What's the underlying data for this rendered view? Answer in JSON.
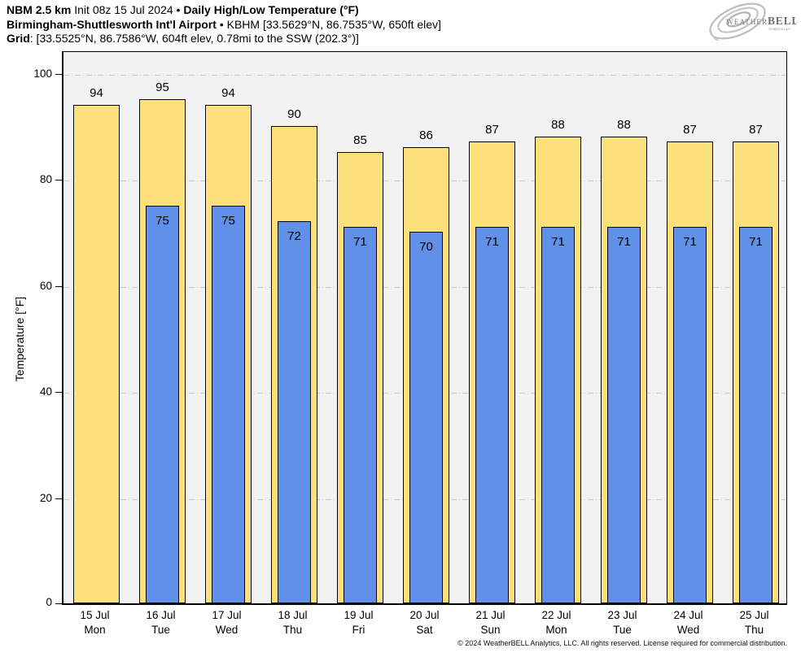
{
  "header": {
    "line1_model": "NBM 2.5 km",
    "line1_init": " Init 08z 15 Jul 2024 • ",
    "line1_title": "Daily High/Low Temperature (°F)",
    "line2_station": "Birmingham-Shuttlesworth Int'l Airport",
    "line2_info": " • KBHM [33.5629°N, 86.7535°W, 650ft elev]",
    "line3_label": "Grid",
    "line3_info": ": [33.5525°N, 86.7586°W, 604ft elev, 0.78mi to the SSW (202.3°)]"
  },
  "logo": {
    "brand_weather": "WEATHER",
    "brand_bell": "BELL",
    "subtext": "Analytics LLC"
  },
  "footer": {
    "copyright": "© 2024 WeatherBELL Analytics, LLC. All rights reserved. License required for commercial distribution."
  },
  "chart_data": {
    "type": "bar",
    "title": "NBM 2.5 km Daily High/Low Temperature (°F) — Birmingham-Shuttlesworth Int'l Airport (KBHM)",
    "ylabel": "Temperature [°F]",
    "ylim": [
      0,
      100
    ],
    "yticks": [
      0,
      20,
      40,
      60,
      80,
      100
    ],
    "grid": "horizontal dash-dot lines at 20,40,60,80,100",
    "legend": "none",
    "categories": [
      "15 Jul",
      "16 Jul",
      "17 Jul",
      "18 Jul",
      "19 Jul",
      "20 Jul",
      "21 Jul",
      "22 Jul",
      "23 Jul",
      "24 Jul",
      "25 Jul"
    ],
    "days": [
      "Mon",
      "Tue",
      "Wed",
      "Thu",
      "Fri",
      "Sat",
      "Sun",
      "Mon",
      "Tue",
      "Wed",
      "Thu"
    ],
    "series": [
      {
        "name": "High",
        "color": "#fce07b",
        "values": [
          94,
          95,
          94,
          90,
          85,
          86,
          87,
          88,
          88,
          87,
          87
        ]
      },
      {
        "name": "Low",
        "color": "#6090e8",
        "values": [
          null,
          75,
          75,
          72,
          71,
          70,
          71,
          71,
          71,
          71,
          71
        ]
      }
    ]
  },
  "colors": {
    "plot_bg": "#f2f2f2",
    "gridline": "#c9c9c9",
    "bar_border": "#000000",
    "high_bar": "#fce07b",
    "low_bar": "#6090e8"
  }
}
